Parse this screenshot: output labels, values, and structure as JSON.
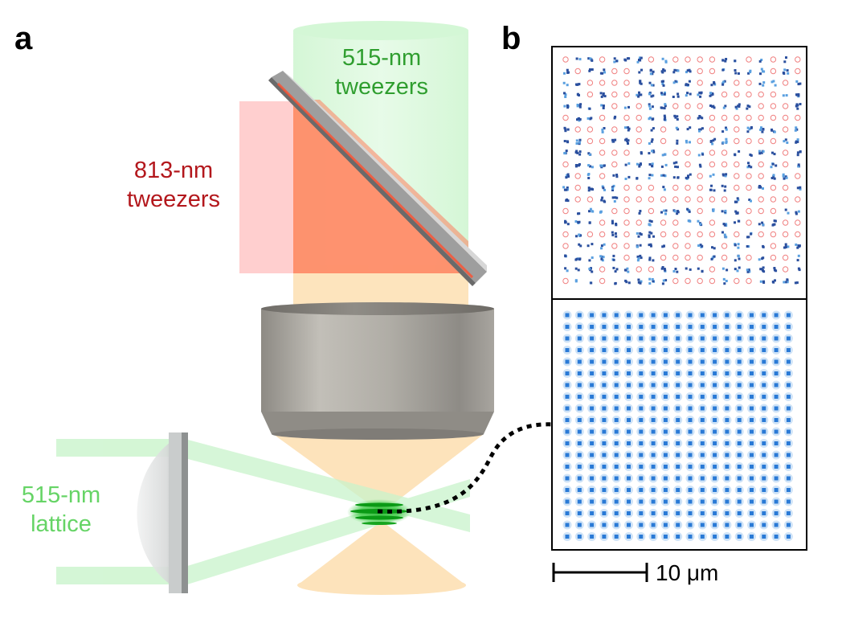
{
  "panels": {
    "a": "a",
    "b": "b"
  },
  "labels": {
    "green_tweezers": {
      "line1": "515-nm",
      "line2": "tweezers",
      "color": "#2f9e2f"
    },
    "red_tweezers": {
      "line1": "813-nm",
      "line2": "tweezers",
      "color": "#b3171c"
    },
    "lattice": {
      "line1": "515-nm",
      "line2": "lattice",
      "color": "#66d466"
    }
  },
  "scale_bar": {
    "label": "10 μm"
  },
  "colors": {
    "green_beam": "#bff2c2",
    "red_beam": "#ff8a6a",
    "orange_beam": "#fde4bd",
    "objective": "#a8a49c",
    "upper_atoms": "#2a4f9e",
    "upper_circles": "#f08080",
    "lower_atoms": "#2a7ad6"
  },
  "icons": {
    "objective": "objective-lens",
    "mirror": "dichroic-mirror",
    "lens": "lattice-lens"
  }
}
